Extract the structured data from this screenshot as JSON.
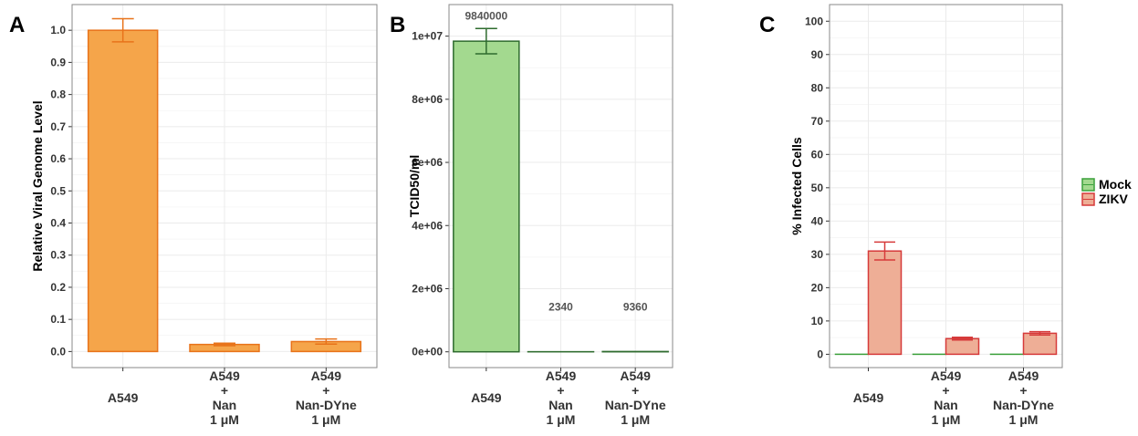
{
  "chart_data": [
    {
      "type": "bar",
      "panel_label": "A",
      "ylabel": "Relative Viral Genome Level",
      "ylim": [
        -0.05,
        1.08
      ],
      "yticks": [
        0.0,
        0.1,
        0.2,
        0.3,
        0.4,
        0.5,
        0.6,
        0.7,
        0.8,
        0.9,
        1.0
      ],
      "ytick_labels": [
        "0.0",
        "0.1",
        "0.2",
        "0.3",
        "0.4",
        "0.5",
        "0.6",
        "0.7",
        "0.8",
        "0.9",
        "1.0"
      ],
      "categories": [
        [
          "A549"
        ],
        [
          "A549",
          "+",
          "Nan",
          "1 μM"
        ],
        [
          "A549",
          "+",
          "Nan-DYne",
          "1 μM"
        ]
      ],
      "series": [
        {
          "values": [
            1.0,
            0.022,
            0.031
          ],
          "errors": [
            0.036,
            0.004,
            0.008
          ],
          "fill": "#f5a54a",
          "stroke": "#e8731a"
        }
      ],
      "grid": true
    },
    {
      "type": "bar",
      "panel_label": "B",
      "ylabel": "TCID50/ml",
      "ylim": [
        -500000,
        11000000
      ],
      "yticks": [
        0,
        2000000,
        4000000,
        6000000,
        8000000,
        10000000
      ],
      "ytick_labels": [
        "0e+00",
        "2e+06",
        "4e+06",
        "6e+06",
        "8e+06",
        "1e+07"
      ],
      "categories": [
        [
          "A549"
        ],
        [
          "A549",
          "+",
          "Nan",
          "1 μM"
        ],
        [
          "A549",
          "+",
          "Nan-DYne",
          "1 μM"
        ]
      ],
      "series": [
        {
          "values": [
            9840000,
            2340,
            9360
          ],
          "errors": [
            400000,
            0,
            0
          ],
          "fill": "#a3d98f",
          "stroke": "#2e6b2e"
        }
      ],
      "data_labels": [
        "9840000",
        "2340",
        "9360"
      ],
      "grid": true
    },
    {
      "type": "bar",
      "panel_label": "C",
      "ylabel": "% Infected Cells",
      "ylim": [
        -4,
        105
      ],
      "yticks": [
        0,
        10,
        20,
        30,
        40,
        50,
        60,
        70,
        80,
        90,
        100
      ],
      "ytick_labels": [
        "0",
        "10",
        "20",
        "30",
        "40",
        "50",
        "60",
        "70",
        "80",
        "90",
        "100"
      ],
      "categories": [
        [
          "A549"
        ],
        [
          "A549",
          "+",
          "Nan",
          "1 μM"
        ],
        [
          "A549",
          "+",
          "Nan-DYne",
          "1 μM"
        ]
      ],
      "series": [
        {
          "name": "Mock",
          "values": [
            0,
            0,
            0
          ],
          "errors": [
            0,
            0,
            0
          ],
          "fill": "#a3d98f",
          "stroke": "#3aa03a"
        },
        {
          "name": "ZIKV",
          "values": [
            31.0,
            4.7,
            6.3
          ],
          "errors": [
            2.7,
            0.4,
            0.5
          ],
          "fill": "#eeae96",
          "stroke": "#d63a3a"
        }
      ],
      "legend": "right",
      "grid": true
    }
  ]
}
